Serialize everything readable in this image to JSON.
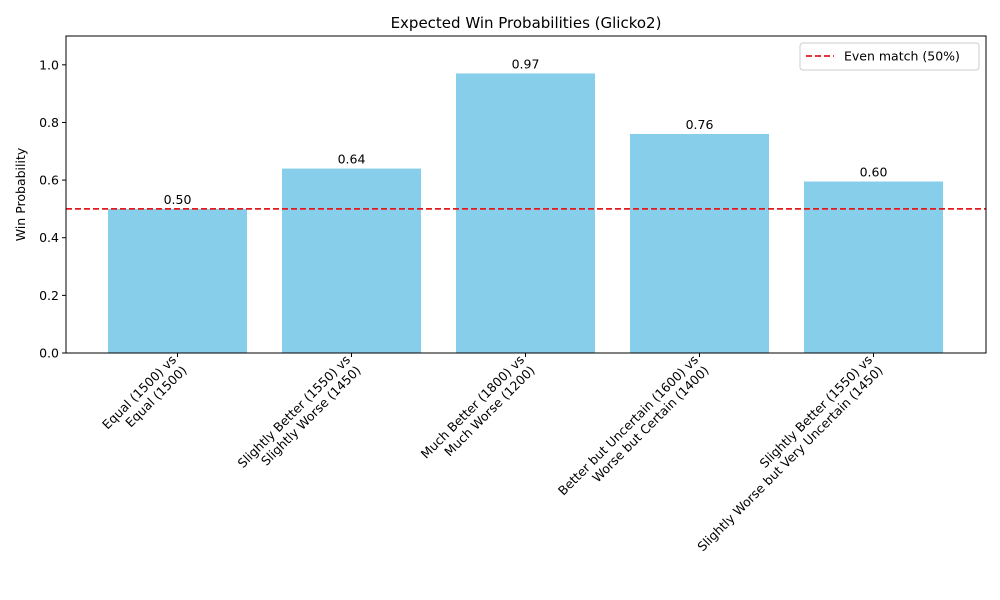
{
  "chart_data": {
    "type": "bar",
    "title": "Expected Win Probabilities (Glicko2)",
    "xlabel": "",
    "ylabel": "Win Probability",
    "ylim": [
      0,
      1.1
    ],
    "yticks": [
      "0.0",
      "0.2",
      "0.4",
      "0.6",
      "0.8",
      "1.0"
    ],
    "ytick_values": [
      0,
      0.2,
      0.4,
      0.6,
      0.8,
      1.0
    ],
    "categories": [
      [
        "Equal (1500) vs",
        "Equal (1500)"
      ],
      [
        "Slightly Better (1550) vs",
        "Slightly Worse (1450)"
      ],
      [
        "Much Better (1800) vs",
        "Much Worse (1200)"
      ],
      [
        "Better but Uncertain (1600) vs",
        "Worse but Certain (1400)"
      ],
      [
        "Slightly Better (1550) vs",
        "Slightly Worse but Very Uncertain (1450)"
      ]
    ],
    "values": [
      0.5,
      0.64,
      0.97,
      0.76,
      0.595
    ],
    "value_labels": [
      "0.50",
      "0.64",
      "0.97",
      "0.76",
      "0.60"
    ],
    "bar_color": "#87ceeb",
    "reference_line": {
      "y": 0.5,
      "label": "Even match (50%)",
      "color": "#e31a1c",
      "style": "dashed"
    },
    "legend": {
      "placement": "top-right"
    },
    "grid": false
  }
}
